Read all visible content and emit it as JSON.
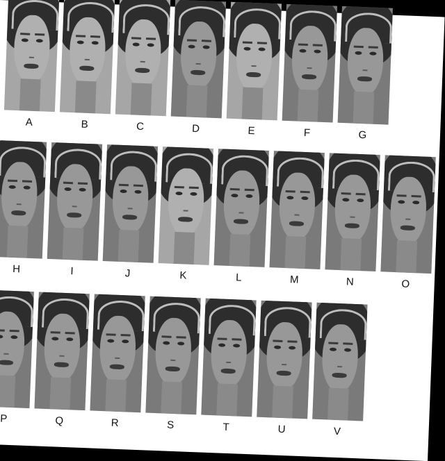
{
  "rows": [
    [
      "A",
      "B",
      "C",
      "D",
      "E",
      "F",
      "G"
    ],
    [
      "H",
      "I",
      "J",
      "K",
      "L",
      "M",
      "N",
      "O"
    ],
    [
      "P",
      "Q",
      "R",
      "S",
      "T",
      "U",
      "V"
    ]
  ]
}
